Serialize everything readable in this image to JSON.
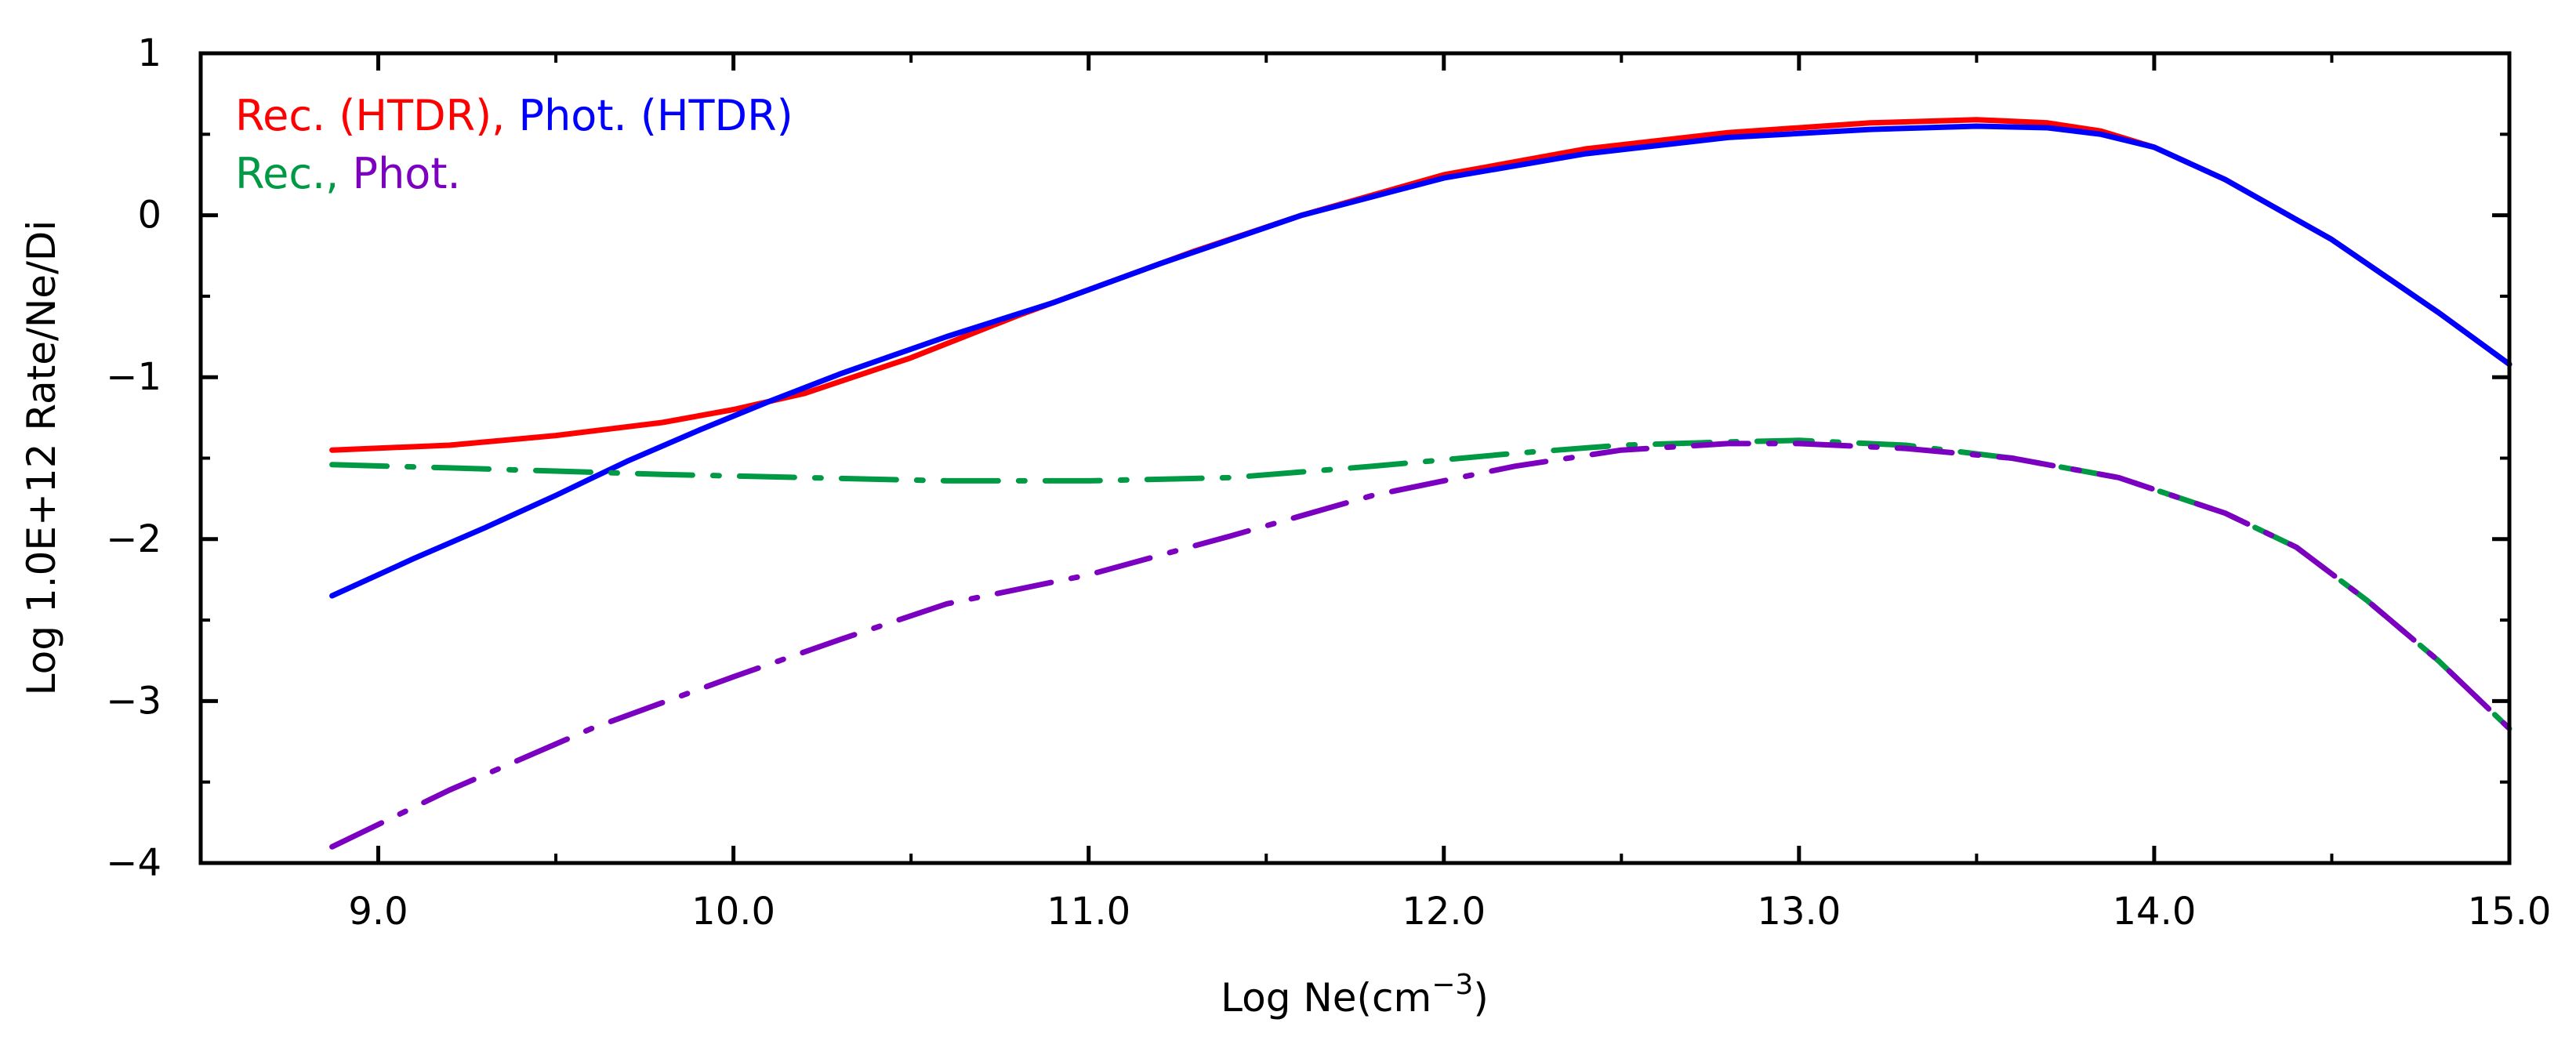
{
  "chart_data": {
    "type": "line",
    "title": "",
    "xlabel": "Log Ne(cm",
    "xlabel_sup": "−3",
    "xlabel_close": ")",
    "ylabel": "Log 1.0E+12 Rate/Ne/Di",
    "xlim": [
      8.5,
      15.0
    ],
    "ylim": [
      -4,
      1
    ],
    "grid": false,
    "legend_position": "top-left",
    "x_ticks": [
      {
        "value": 9.0,
        "label": "9.0"
      },
      {
        "value": 10.0,
        "label": "10.0"
      },
      {
        "value": 11.0,
        "label": "11.0"
      },
      {
        "value": 12.0,
        "label": "12.0"
      },
      {
        "value": 13.0,
        "label": "13.0"
      },
      {
        "value": 14.0,
        "label": "14.0"
      },
      {
        "value": 15.0,
        "label": "15.0"
      }
    ],
    "y_ticks": [
      {
        "value": -4,
        "label": "−4"
      },
      {
        "value": -3,
        "label": "−3"
      },
      {
        "value": -2,
        "label": "−2"
      },
      {
        "value": -1,
        "label": "−1"
      },
      {
        "value": 0,
        "label": "0"
      },
      {
        "value": 1,
        "label": "1"
      }
    ],
    "legend_rows": [
      [
        {
          "text": "Rec. (HTDR),",
          "color": "#ff0000"
        },
        {
          "text": "Phot. (HTDR)",
          "color": "#0000ff"
        }
      ],
      [
        {
          "text": "Rec.,",
          "color": "#009944"
        },
        {
          "text": "Phot.",
          "color": "#7b00c0"
        }
      ]
    ],
    "series": [
      {
        "name": "Rec. (HTDR)",
        "color": "#ff0000",
        "style": "solid",
        "x": [
          8.87,
          9.2,
          9.5,
          9.8,
          10.0,
          10.2,
          10.5,
          10.8,
          11.0,
          11.3,
          11.6,
          12.0,
          12.4,
          12.8,
          13.2,
          13.5,
          13.7,
          13.85,
          14.0,
          14.2,
          14.5,
          14.8,
          15.0
        ],
        "values": [
          -1.45,
          -1.42,
          -1.36,
          -1.28,
          -1.2,
          -1.1,
          -0.88,
          -0.62,
          -0.46,
          -0.22,
          0.0,
          0.25,
          0.41,
          0.51,
          0.57,
          0.59,
          0.57,
          0.52,
          0.42,
          0.22,
          -0.15,
          -0.6,
          -0.92
        ]
      },
      {
        "name": "Phot. (HTDR)",
        "color": "#0000ff",
        "style": "solid",
        "x": [
          8.87,
          9.1,
          9.3,
          9.5,
          9.7,
          9.9,
          10.1,
          10.3,
          10.6,
          10.9,
          11.2,
          11.6,
          12.0,
          12.4,
          12.8,
          13.2,
          13.5,
          13.7,
          13.85,
          14.0,
          14.2,
          14.5,
          14.8,
          15.0
        ],
        "values": [
          -2.35,
          -2.12,
          -1.93,
          -1.73,
          -1.52,
          -1.33,
          -1.15,
          -0.98,
          -0.75,
          -0.54,
          -0.3,
          0.0,
          0.23,
          0.38,
          0.48,
          0.53,
          0.55,
          0.54,
          0.5,
          0.42,
          0.22,
          -0.15,
          -0.6,
          -0.92
        ]
      },
      {
        "name": "Rec.",
        "color": "#009944",
        "style": "dashdot",
        "x": [
          8.87,
          9.2,
          9.5,
          9.8,
          10.2,
          10.6,
          11.0,
          11.4,
          11.8,
          12.2,
          12.5,
          12.8,
          13.0,
          13.3,
          13.6,
          13.9,
          14.2,
          14.4,
          14.6,
          14.8,
          15.0
        ],
        "values": [
          -1.54,
          -1.56,
          -1.58,
          -1.6,
          -1.62,
          -1.64,
          -1.64,
          -1.62,
          -1.55,
          -1.47,
          -1.42,
          -1.4,
          -1.39,
          -1.42,
          -1.5,
          -1.62,
          -1.84,
          -2.05,
          -2.38,
          -2.75,
          -3.17
        ]
      },
      {
        "name": "Phot.",
        "color": "#7b00c0",
        "style": "dashdot",
        "x": [
          8.87,
          9.2,
          9.6,
          10.0,
          10.3,
          10.6,
          11.0,
          11.4,
          11.8,
          12.2,
          12.5,
          12.8,
          13.0,
          13.3,
          13.6,
          13.9,
          14.2,
          14.4,
          14.6,
          14.8,
          15.0
        ],
        "values": [
          -3.9,
          -3.55,
          -3.17,
          -2.85,
          -2.62,
          -2.4,
          -2.22,
          -1.98,
          -1.73,
          -1.55,
          -1.45,
          -1.41,
          -1.41,
          -1.44,
          -1.5,
          -1.62,
          -1.84,
          -2.05,
          -2.38,
          -2.75,
          -3.17
        ]
      }
    ]
  }
}
